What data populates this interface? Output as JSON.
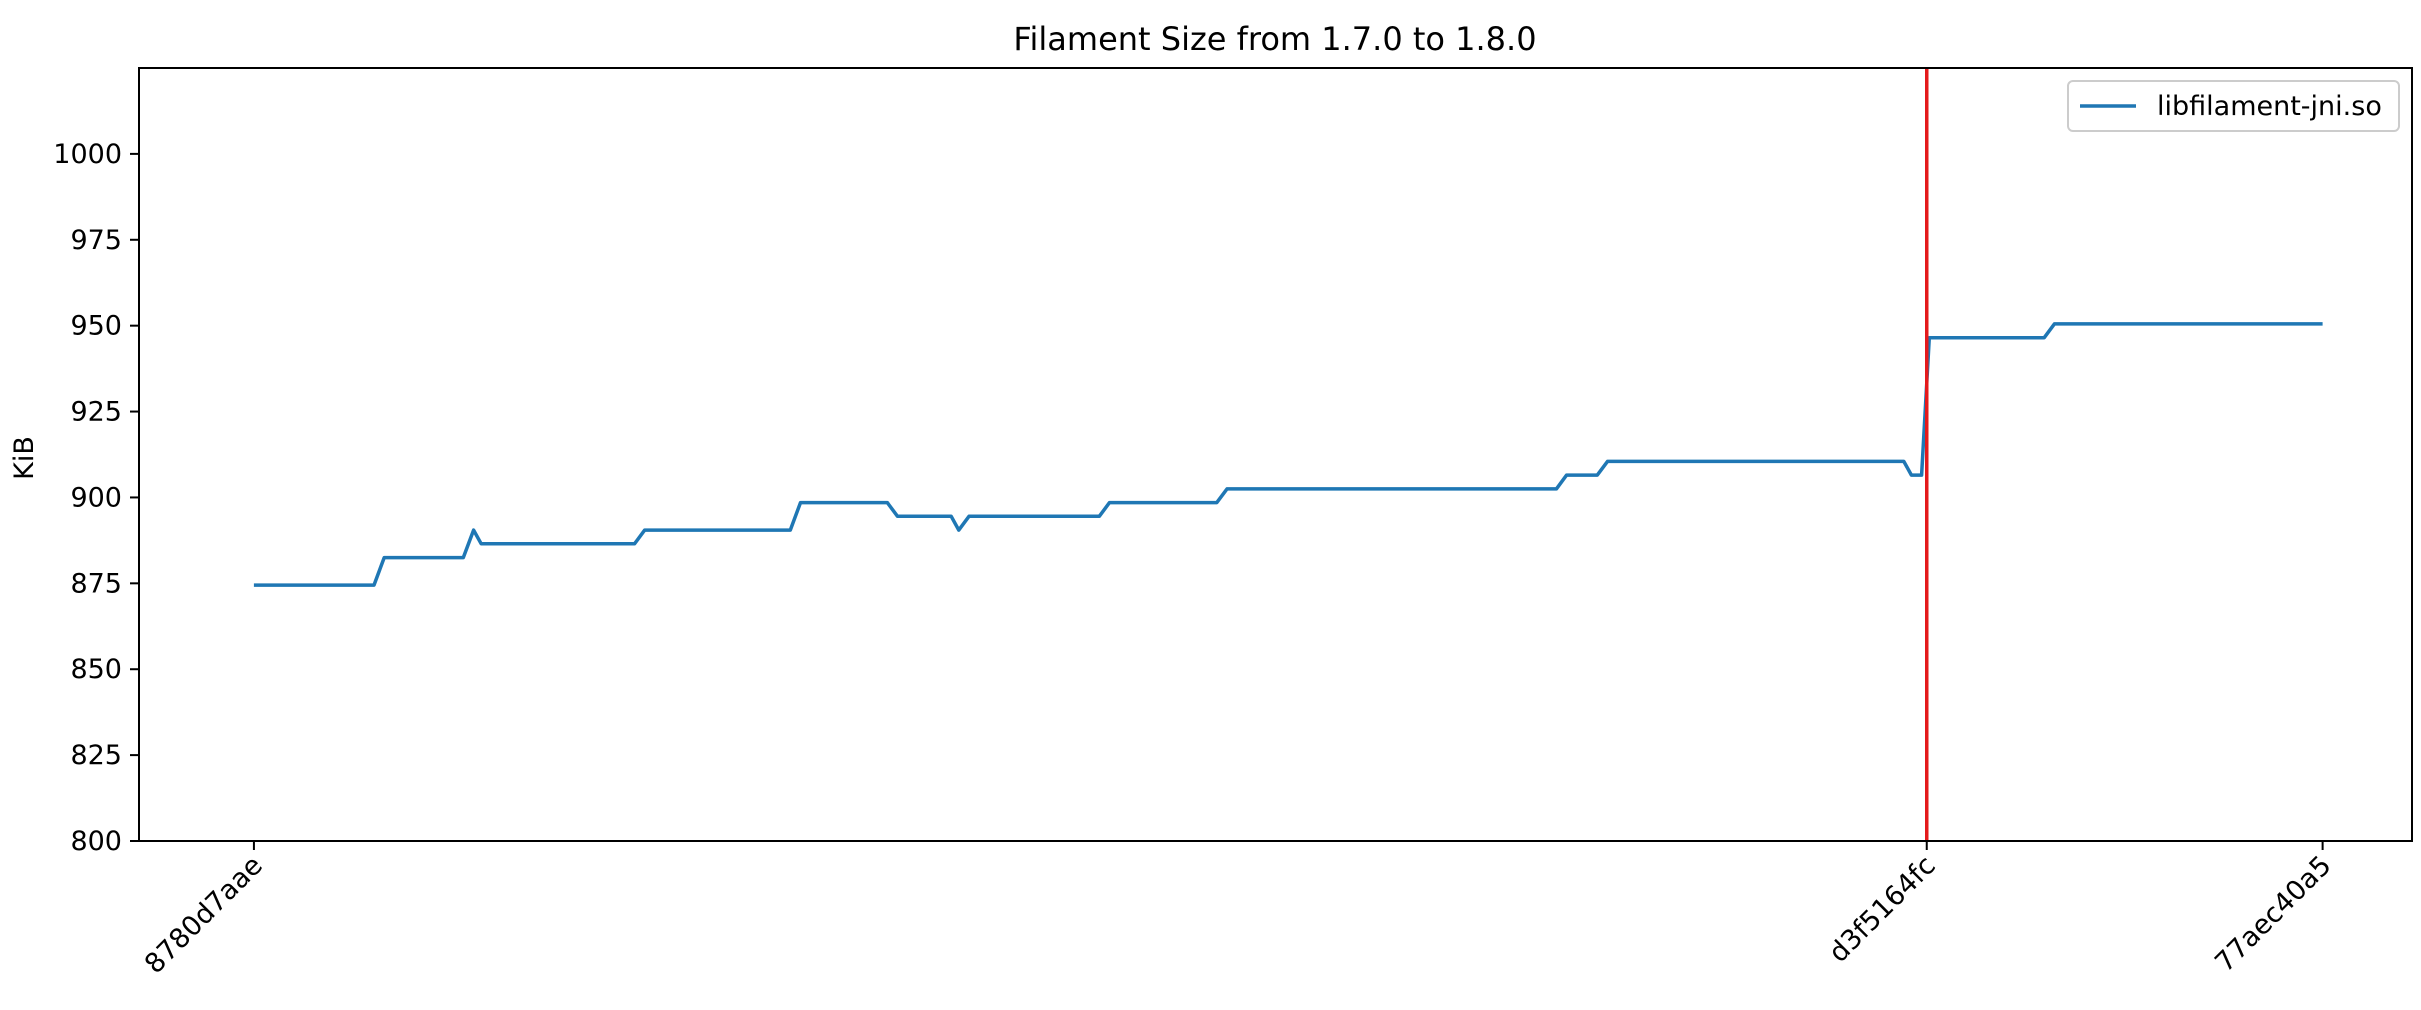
{
  "chart_data": {
    "type": "line",
    "title": "Filament Size from 1.7.0 to 1.8.0",
    "xlabel": "",
    "ylabel": "KiB",
    "ylim": [
      800,
      1025
    ],
    "yticks": [
      800,
      825,
      850,
      875,
      900,
      925,
      950,
      975,
      1000
    ],
    "xlim": [
      -4.5,
      84.5
    ],
    "xticks": [
      {
        "x": 0,
        "label": "8780d7aae"
      },
      {
        "x": 65.5,
        "label": "d3f5164fc"
      },
      {
        "x": 81,
        "label": "77aec40a5"
      }
    ],
    "vline": {
      "x": 65.5,
      "color": "#e41a1c"
    },
    "grid": false,
    "legend_position": "top-right",
    "series": [
      {
        "name": "libfilament-jni.so",
        "color": "#1f77b4",
        "values": [
          {
            "x": 0,
            "y": 874.5
          },
          {
            "x": 4.7,
            "y": 874.5
          },
          {
            "x": 5.1,
            "y": 882.5
          },
          {
            "x": 8.2,
            "y": 882.5
          },
          {
            "x": 8.6,
            "y": 890.5
          },
          {
            "x": 8.9,
            "y": 886.5
          },
          {
            "x": 14.9,
            "y": 886.5
          },
          {
            "x": 15.3,
            "y": 890.5
          },
          {
            "x": 21.0,
            "y": 890.5
          },
          {
            "x": 21.4,
            "y": 898.5
          },
          {
            "x": 24.8,
            "y": 898.5
          },
          {
            "x": 25.2,
            "y": 894.5
          },
          {
            "x": 27.3,
            "y": 894.5
          },
          {
            "x": 27.6,
            "y": 890.5
          },
          {
            "x": 28.0,
            "y": 894.5
          },
          {
            "x": 33.1,
            "y": 894.5
          },
          {
            "x": 33.5,
            "y": 898.5
          },
          {
            "x": 37.7,
            "y": 898.5
          },
          {
            "x": 38.1,
            "y": 902.5
          },
          {
            "x": 51.0,
            "y": 902.5
          },
          {
            "x": 51.4,
            "y": 906.5
          },
          {
            "x": 52.6,
            "y": 906.5
          },
          {
            "x": 53.0,
            "y": 910.5
          },
          {
            "x": 64.6,
            "y": 910.5
          },
          {
            "x": 64.9,
            "y": 906.5
          },
          {
            "x": 65.3,
            "y": 906.5
          },
          {
            "x": 65.6,
            "y": 946.5
          },
          {
            "x": 70.1,
            "y": 946.5
          },
          {
            "x": 70.5,
            "y": 950.5
          },
          {
            "x": 81.0,
            "y": 950.5
          }
        ]
      }
    ]
  }
}
